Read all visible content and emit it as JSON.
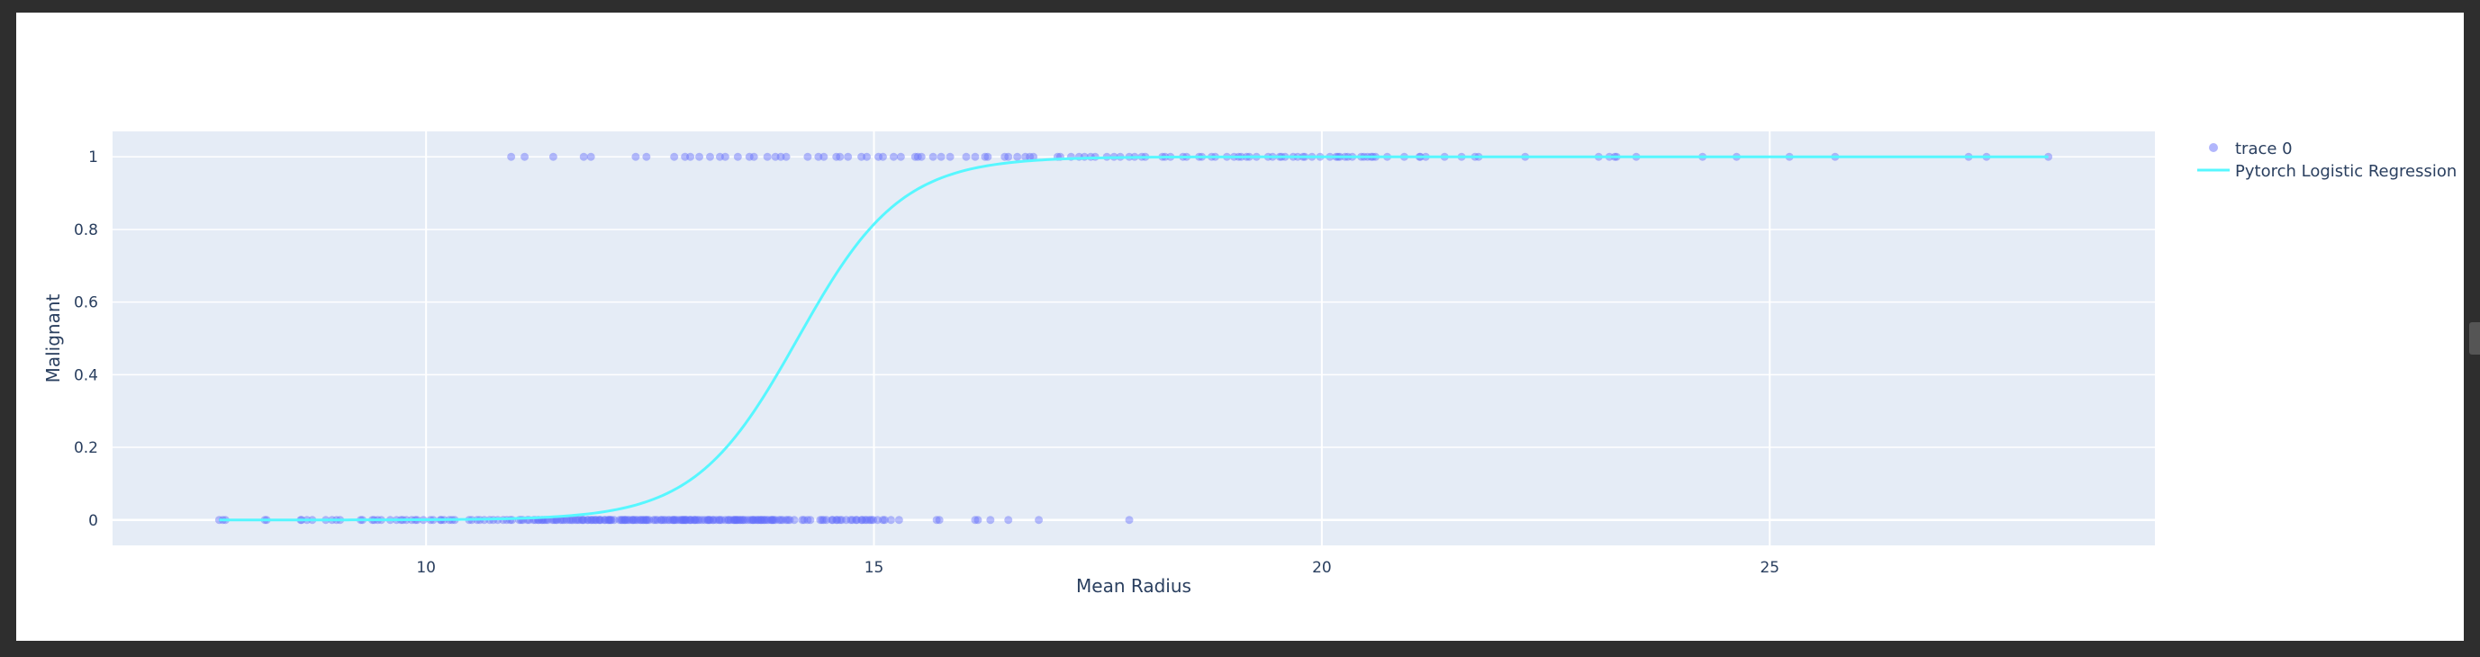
{
  "chart_data": {
    "type": "scatter",
    "xlabel": "Mean Radius",
    "ylabel": "Malignant",
    "xlim": [
      6.5,
      29.3
    ],
    "ylim": [
      -0.07,
      1.07
    ],
    "xticks": [
      10,
      15,
      20,
      25
    ],
    "yticks": [
      0,
      0.2,
      0.4,
      0.6,
      0.8,
      1
    ],
    "grid": true,
    "legend_position": "top-right outside",
    "colors": {
      "plot_background": "#e5ecf6",
      "grid": "#ffffff",
      "markers": "#636efa",
      "curve": "#57f7ff",
      "text": "#2a3f5f"
    },
    "series": [
      {
        "name": "trace 0",
        "mode": "markers",
        "points_y1_x": [
          10.95,
          11.1,
          11.42,
          11.76,
          11.84,
          12.34,
          12.46,
          12.77,
          12.89,
          12.95,
          13.05,
          13.17,
          13.28,
          13.34,
          13.48,
          13.61,
          13.66,
          13.81,
          13.9,
          13.96,
          14.02,
          14.26,
          14.38,
          14.44,
          14.58,
          14.62,
          14.71,
          14.86,
          14.92,
          15.05,
          15.1,
          15.22,
          15.3,
          15.46,
          15.49,
          15.53,
          15.66,
          15.75,
          15.85,
          16.03,
          16.13,
          16.24,
          16.27,
          16.46,
          16.5,
          16.6,
          16.69,
          16.74,
          16.78,
          17.05,
          17.08,
          17.2,
          17.29,
          17.35,
          17.42,
          17.47,
          17.6,
          17.68,
          17.75,
          17.85,
          17.91,
          17.99,
          18.03,
          18.22,
          18.25,
          18.31,
          18.45,
          18.49,
          18.63,
          18.66,
          18.77,
          18.81,
          18.94,
          19.02,
          19.07,
          19.1,
          19.16,
          19.19,
          19.27,
          19.4,
          19.45,
          19.53,
          19.55,
          19.59,
          19.68,
          19.73,
          19.79,
          19.81,
          19.89,
          19.98,
          20.09,
          20.16,
          20.18,
          20.2,
          20.26,
          20.29,
          20.34,
          20.44,
          20.47,
          20.51,
          20.55,
          20.57,
          20.6,
          20.73,
          20.92,
          21.09,
          21.1,
          21.16,
          21.37,
          21.56,
          21.71,
          21.75,
          22.27,
          23.09,
          23.21,
          23.27,
          23.29,
          23.51,
          24.25,
          24.63,
          25.22,
          25.73,
          27.22,
          27.42,
          28.11
        ],
        "points_y0_x": [
          7.69,
          7.73,
          7.76,
          8.2,
          8.22,
          8.6,
          8.61,
          8.67,
          8.73,
          8.88,
          8.95,
          9.0,
          9.04,
          9.27,
          9.29,
          9.4,
          9.42,
          9.46,
          9.5,
          9.6,
          9.67,
          9.72,
          9.74,
          9.78,
          9.84,
          9.88,
          9.9,
          9.97,
          10.05,
          10.08,
          10.16,
          10.17,
          10.2,
          10.26,
          10.29,
          10.32,
          10.48,
          10.51,
          10.57,
          10.6,
          10.65,
          10.71,
          10.75,
          10.8,
          10.86,
          10.9,
          10.94,
          10.96,
          11.04,
          11.06,
          11.08,
          11.13,
          11.15,
          11.2,
          11.22,
          11.25,
          11.26,
          11.29,
          11.3,
          11.32,
          11.34,
          11.36,
          11.41,
          11.43,
          11.45,
          11.46,
          11.5,
          11.52,
          11.54,
          11.57,
          11.6,
          11.62,
          11.64,
          11.67,
          11.69,
          11.71,
          11.74,
          11.75,
          11.76,
          11.8,
          11.81,
          11.84,
          11.85,
          11.87,
          11.89,
          11.9,
          11.93,
          11.94,
          11.95,
          11.99,
          12.0,
          12.03,
          12.04,
          12.05,
          12.06,
          12.07,
          12.1,
          12.16,
          12.18,
          12.19,
          12.21,
          12.22,
          12.23,
          12.25,
          12.27,
          12.3,
          12.31,
          12.32,
          12.34,
          12.36,
          12.39,
          12.4,
          12.42,
          12.43,
          12.45,
          12.46,
          12.47,
          12.49,
          12.54,
          12.56,
          12.58,
          12.62,
          12.63,
          12.65,
          12.67,
          12.7,
          12.72,
          12.75,
          12.76,
          12.77,
          12.78,
          12.8,
          12.83,
          12.85,
          12.86,
          12.87,
          12.88,
          12.89,
          12.9,
          12.91,
          12.94,
          12.95,
          12.96,
          12.99,
          13.0,
          13.01,
          13.03,
          13.05,
          13.08,
          13.11,
          13.14,
          13.15,
          13.16,
          13.17,
          13.2,
          13.21,
          13.24,
          13.27,
          13.28,
          13.3,
          13.34,
          13.37,
          13.38,
          13.4,
          13.43,
          13.44,
          13.45,
          13.46,
          13.47,
          13.48,
          13.5,
          13.51,
          13.53,
          13.54,
          13.56,
          13.59,
          13.62,
          13.64,
          13.65,
          13.66,
          13.68,
          13.7,
          13.71,
          13.73,
          13.74,
          13.75,
          13.77,
          13.78,
          13.8,
          13.82,
          13.85,
          13.86,
          13.87,
          13.88,
          13.9,
          13.94,
          13.96,
          13.98,
          14.02,
          14.04,
          14.06,
          14.11,
          14.2,
          14.22,
          14.26,
          14.29,
          14.4,
          14.42,
          14.44,
          14.47,
          14.53,
          14.54,
          14.58,
          14.59,
          14.62,
          14.64,
          14.69,
          14.74,
          14.76,
          14.8,
          14.81,
          14.86,
          14.87,
          14.9,
          14.92,
          14.95,
          14.97,
          14.99,
          15.04,
          15.1,
          15.12,
          15.19,
          15.28,
          15.7,
          15.73,
          16.13,
          16.16,
          16.3,
          16.5,
          16.84,
          17.85
        ]
      },
      {
        "name": "Pytorch Logistic Regression",
        "mode": "lines",
        "model": {
          "form": "1/(1+exp(-k*(x-x0)))",
          "k": 1.74,
          "x0": 14.15
        },
        "x_range": [
          7.69,
          28.11
        ]
      }
    ]
  }
}
